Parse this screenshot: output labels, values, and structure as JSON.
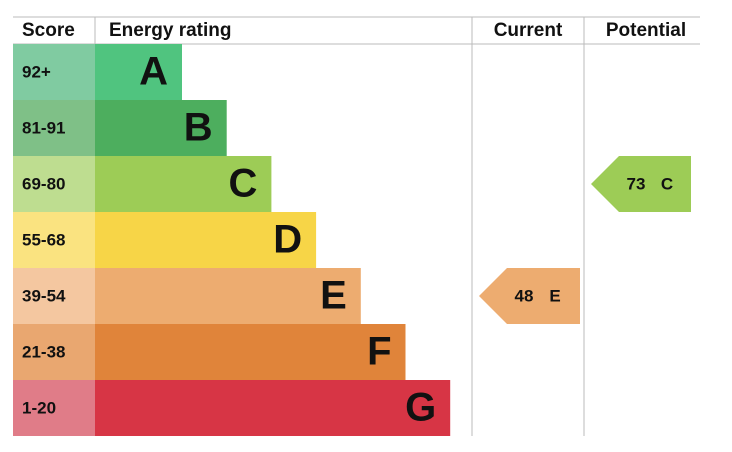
{
  "header": {
    "score": "Score",
    "rating": "Energy rating",
    "current": "Current",
    "potential": "Potential"
  },
  "rows": [
    {
      "score": "92+",
      "letter": "A",
      "color": "#50c47f",
      "score_color": "#80cba1"
    },
    {
      "score": "81-91",
      "letter": "B",
      "color": "#4dae5e",
      "score_color": "#7fc087"
    },
    {
      "score": "69-80",
      "letter": "C",
      "color": "#9dcc56",
      "score_color": "#bedd90"
    },
    {
      "score": "55-68",
      "letter": "D",
      "color": "#f7d547",
      "score_color": "#fae380"
    },
    {
      "score": "39-54",
      "letter": "E",
      "color": "#edac70",
      "score_color": "#f4c7a0"
    },
    {
      "score": "21-38",
      "letter": "F",
      "color": "#e0843a",
      "score_color": "#e9a770"
    },
    {
      "score": "1-20",
      "letter": "G",
      "color": "#d73545",
      "score_color": "#e07c88"
    }
  ],
  "current": {
    "value": 48,
    "letter": "E"
  },
  "potential": {
    "value": 73,
    "letter": "C"
  }
}
